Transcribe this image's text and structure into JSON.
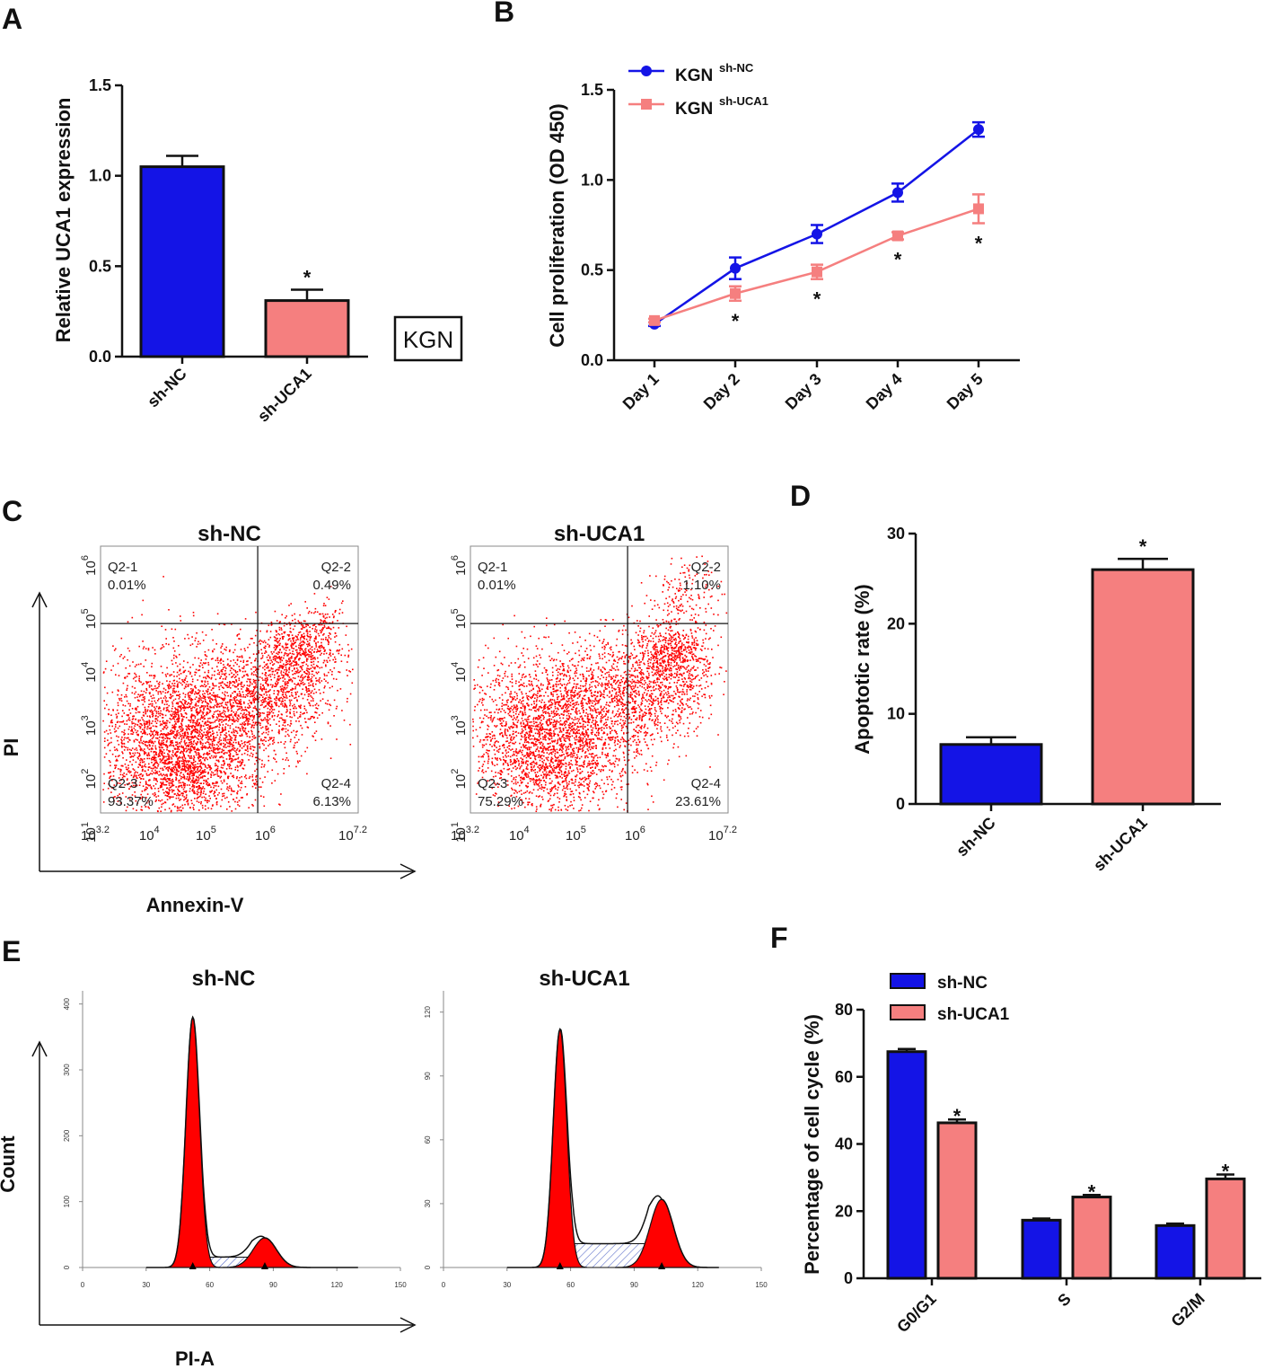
{
  "colors": {
    "blue": "#1414e6",
    "pink": "#f57f7f",
    "red": "#ff0000",
    "black": "#111111",
    "hatch": "#5a6cc8"
  },
  "chart_data": [
    {
      "panel": "A",
      "type": "bar",
      "categories": [
        "sh-NC",
        "sh-UCA1"
      ],
      "values": [
        1.05,
        0.31
      ],
      "errors": [
        0.06,
        0.06
      ],
      "significance": [
        "",
        "*"
      ],
      "ylabel": "Relative UCA1 expression",
      "ylim": [
        0,
        1.5
      ],
      "yticks": [
        "0.0",
        "0.5",
        "1.0",
        "1.5"
      ],
      "annotation": "KGN"
    },
    {
      "panel": "B",
      "type": "line",
      "categories": [
        "Day 1",
        "Day 2",
        "Day 3",
        "Day 4",
        "Day 5"
      ],
      "series": [
        {
          "name": "KGN",
          "superscript": "sh-NC",
          "values": [
            0.2,
            0.51,
            0.7,
            0.93,
            1.28
          ],
          "errors": [
            0.01,
            0.06,
            0.05,
            0.05,
            0.04
          ]
        },
        {
          "name": "KGN",
          "superscript": "sh-UCA1",
          "values": [
            0.22,
            0.37,
            0.49,
            0.69,
            0.84
          ],
          "errors": [
            0.01,
            0.04,
            0.04,
            0.02,
            0.08
          ]
        }
      ],
      "significance": [
        "",
        "*",
        "*",
        "*",
        "*"
      ],
      "ylabel": "Cell proliferation (OD 450)",
      "ylim": [
        0,
        1.5
      ],
      "yticks": [
        "0.0",
        "0.5",
        "1.0",
        "1.5"
      ]
    },
    {
      "panel": "C",
      "type": "scatter",
      "xlabel": "Annexin-V",
      "ylabel": "PI",
      "xtick_bases": [
        "10",
        "10",
        "10",
        "10",
        "10"
      ],
      "xtick_exps": [
        "3.2",
        "4",
        "5",
        "6",
        "7.2"
      ],
      "ytick_bases": [
        "10",
        "10",
        "10",
        "10",
        "10",
        "10"
      ],
      "ytick_exps": [
        "1",
        "2",
        "3",
        "4",
        "5",
        "6"
      ],
      "plots": [
        {
          "title": "sh-NC",
          "quadrants": {
            "q1_label": "Q2-1",
            "q1_value": "0.01%",
            "q2_label": "Q2-2",
            "q2_value": "0.49%",
            "q3_label": "Q2-3",
            "q3_value": "93.37%",
            "q4_label": "Q2-4",
            "q4_value": "6.13%"
          }
        },
        {
          "title": "sh-UCA1",
          "quadrants": {
            "q1_label": "Q2-1",
            "q1_value": "0.01%",
            "q2_label": "Q2-2",
            "q2_value": "1.10%",
            "q3_label": "Q2-3",
            "q3_value": "75.29%",
            "q4_label": "Q2-4",
            "q4_value": "23.61%"
          }
        }
      ]
    },
    {
      "panel": "D",
      "type": "bar",
      "categories": [
        "sh-NC",
        "sh-UCA1"
      ],
      "values": [
        6.6,
        26
      ],
      "errors": [
        0.8,
        1.2
      ],
      "significance": [
        "",
        "*"
      ],
      "ylabel": "Apoptotic rate (%)",
      "ylim": [
        0,
        30
      ],
      "yticks": [
        "0",
        "10",
        "20",
        "30"
      ]
    },
    {
      "panel": "E",
      "type": "area",
      "xlabel": "PI-A",
      "ylabel": "Count",
      "xticks": [
        "0",
        "30",
        "60",
        "90",
        "120",
        "150"
      ],
      "plots": [
        {
          "title": "sh-NC",
          "yticks": [
            "0",
            "100",
            "200",
            "300",
            "400"
          ],
          "ymax": 420,
          "g1_peak": 380,
          "g2_peak": 45,
          "g1_pos": 52,
          "g2_pos": 86
        },
        {
          "title": "sh-UCA1",
          "yticks": [
            "0",
            "30",
            "60",
            "90",
            "120"
          ],
          "ymax": 130,
          "g1_peak": 112,
          "g2_peak": 32,
          "g1_pos": 55,
          "g2_pos": 103
        }
      ]
    },
    {
      "panel": "F",
      "type": "bar",
      "categories": [
        "G0/G1",
        "S",
        "G2/M"
      ],
      "series": [
        {
          "name": "sh-NC",
          "values": [
            67.5,
            17.3,
            15.7
          ],
          "errors": [
            0.8,
            0.5,
            0.6
          ]
        },
        {
          "name": "sh-UCA1",
          "values": [
            46.3,
            24.2,
            29.6
          ],
          "errors": [
            1.0,
            0.6,
            1.3
          ]
        }
      ],
      "significance": [
        "*",
        "*",
        "*"
      ],
      "ylabel": "Percentage of cell cycle (%)",
      "ylim": [
        0,
        80
      ],
      "yticks": [
        "0",
        "20",
        "40",
        "60",
        "80"
      ]
    }
  ]
}
